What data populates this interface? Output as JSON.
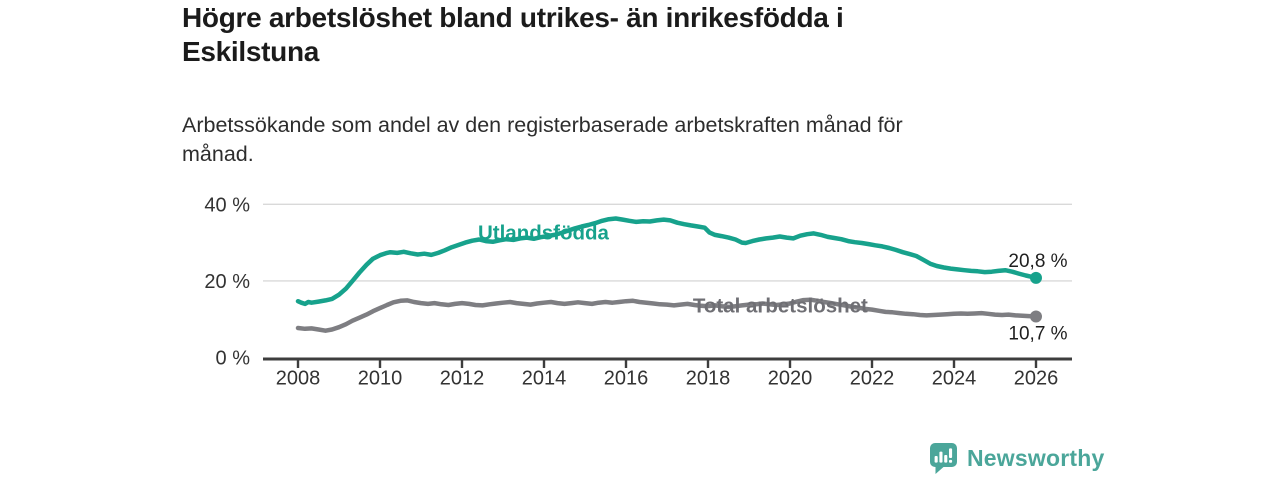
{
  "header": {
    "title_lines": [
      "Högre arbetslöshet bland utrikes- än inrikesfödda i",
      "Eskilstuna"
    ],
    "subtitle_lines": [
      "Arbetssökande som andel av den registerbaserade arbetskraften månad för",
      "månad."
    ]
  },
  "branding": {
    "logo_text": "Newsworthy",
    "logo_icon": "bar-chart-speech-bubble",
    "brand_color": "#4ba69a"
  },
  "colors": {
    "foreign_born_line": "#17a28c",
    "total_line": "#7e7e82",
    "total_label": "#6f6f74",
    "axis": "#3d3d3d",
    "gridline": "#d9d9d9",
    "axis_text": "#333333",
    "end_label_text": "#1f1f1f",
    "title_text": "#1b1b1b"
  },
  "chart_data": {
    "type": "line",
    "title": "Högre arbetslöshet bland utrikes- än inrikesfödda i Eskilstuna",
    "subtitle": "Arbetssökande som andel av den registerbaserade arbetskraften månad för månad.",
    "xlabel": "",
    "ylabel": "",
    "grid": "horizontal",
    "legend_position": "inline-labels",
    "xlim": [
      2007.15,
      2026.9
    ],
    "ylim": [
      0,
      42
    ],
    "x_ticks": [
      2008,
      2010,
      2012,
      2014,
      2016,
      2018,
      2020,
      2022,
      2024,
      2026
    ],
    "y_ticks": [
      {
        "value": 0,
        "label": "0 %"
      },
      {
        "value": 20,
        "label": "20 %"
      },
      {
        "value": 40,
        "label": "40 %"
      }
    ],
    "series": [
      {
        "name": "Utlandsfödda",
        "color": "#17a28c",
        "label_color": "#17a28c",
        "end_label": "20,8 %",
        "end_value": 20.8,
        "end_label_position": "above",
        "label_anchor": {
          "year": 2012.39,
          "pct": 30.85
        },
        "points": [
          [
            2008.0,
            14.7
          ],
          [
            2008.08,
            14.3
          ],
          [
            2008.17,
            14.0
          ],
          [
            2008.25,
            14.5
          ],
          [
            2008.33,
            14.3
          ],
          [
            2008.5,
            14.6
          ],
          [
            2008.67,
            14.9
          ],
          [
            2008.83,
            15.3
          ],
          [
            2009.0,
            16.4
          ],
          [
            2009.17,
            18.0
          ],
          [
            2009.33,
            20.0
          ],
          [
            2009.5,
            22.2
          ],
          [
            2009.67,
            24.2
          ],
          [
            2009.83,
            25.8
          ],
          [
            2010.0,
            26.7
          ],
          [
            2010.17,
            27.3
          ],
          [
            2010.25,
            27.5
          ],
          [
            2010.42,
            27.3
          ],
          [
            2010.58,
            27.6
          ],
          [
            2010.75,
            27.2
          ],
          [
            2010.92,
            26.9
          ],
          [
            2011.08,
            27.1
          ],
          [
            2011.25,
            26.8
          ],
          [
            2011.42,
            27.3
          ],
          [
            2011.58,
            28.0
          ],
          [
            2011.75,
            28.8
          ],
          [
            2011.92,
            29.4
          ],
          [
            2012.08,
            30.0
          ],
          [
            2012.25,
            30.5
          ],
          [
            2012.42,
            30.8
          ],
          [
            2012.58,
            30.4
          ],
          [
            2012.75,
            30.2
          ],
          [
            2012.92,
            30.6
          ],
          [
            2013.08,
            30.9
          ],
          [
            2013.25,
            30.7
          ],
          [
            2013.42,
            31.1
          ],
          [
            2013.58,
            31.3
          ],
          [
            2013.75,
            31.0
          ],
          [
            2013.92,
            31.4
          ],
          [
            2014.08,
            31.7
          ],
          [
            2014.25,
            32.0
          ],
          [
            2014.42,
            32.5
          ],
          [
            2014.58,
            33.1
          ],
          [
            2014.75,
            33.7
          ],
          [
            2014.92,
            34.2
          ],
          [
            2015.08,
            34.6
          ],
          [
            2015.25,
            35.1
          ],
          [
            2015.42,
            35.7
          ],
          [
            2015.58,
            36.1
          ],
          [
            2015.75,
            36.3
          ],
          [
            2015.92,
            36.0
          ],
          [
            2016.08,
            35.7
          ],
          [
            2016.25,
            35.4
          ],
          [
            2016.42,
            35.6
          ],
          [
            2016.58,
            35.5
          ],
          [
            2016.75,
            35.8
          ],
          [
            2016.92,
            36.0
          ],
          [
            2017.08,
            35.8
          ],
          [
            2017.25,
            35.2
          ],
          [
            2017.42,
            34.8
          ],
          [
            2017.58,
            34.5
          ],
          [
            2017.75,
            34.2
          ],
          [
            2017.92,
            33.9
          ],
          [
            2018.04,
            32.6
          ],
          [
            2018.17,
            32.0
          ],
          [
            2018.33,
            31.7
          ],
          [
            2018.5,
            31.3
          ],
          [
            2018.67,
            30.8
          ],
          [
            2018.83,
            30.0
          ],
          [
            2018.92,
            29.9
          ],
          [
            2019.08,
            30.4
          ],
          [
            2019.25,
            30.8
          ],
          [
            2019.42,
            31.1
          ],
          [
            2019.58,
            31.3
          ],
          [
            2019.75,
            31.6
          ],
          [
            2019.92,
            31.3
          ],
          [
            2020.08,
            31.1
          ],
          [
            2020.25,
            31.8
          ],
          [
            2020.42,
            32.2
          ],
          [
            2020.58,
            32.4
          ],
          [
            2020.75,
            32.0
          ],
          [
            2020.92,
            31.5
          ],
          [
            2021.08,
            31.2
          ],
          [
            2021.25,
            30.9
          ],
          [
            2021.42,
            30.4
          ],
          [
            2021.58,
            30.1
          ],
          [
            2021.75,
            29.9
          ],
          [
            2021.92,
            29.6
          ],
          [
            2022.08,
            29.3
          ],
          [
            2022.25,
            29.0
          ],
          [
            2022.42,
            28.6
          ],
          [
            2022.58,
            28.1
          ],
          [
            2022.75,
            27.5
          ],
          [
            2022.92,
            27.0
          ],
          [
            2023.08,
            26.5
          ],
          [
            2023.25,
            25.5
          ],
          [
            2023.42,
            24.5
          ],
          [
            2023.58,
            23.9
          ],
          [
            2023.75,
            23.5
          ],
          [
            2023.92,
            23.2
          ],
          [
            2024.08,
            23.0
          ],
          [
            2024.25,
            22.8
          ],
          [
            2024.42,
            22.6
          ],
          [
            2024.58,
            22.5
          ],
          [
            2024.75,
            22.3
          ],
          [
            2024.92,
            22.4
          ],
          [
            2025.08,
            22.6
          ],
          [
            2025.25,
            22.8
          ],
          [
            2025.42,
            22.4
          ],
          [
            2025.58,
            21.9
          ],
          [
            2025.75,
            21.4
          ],
          [
            2025.92,
            21.0
          ],
          [
            2026.0,
            20.8
          ]
        ]
      },
      {
        "name": "Total arbetslöshet",
        "color": "#7e7e82",
        "label_color": "#6f6f74",
        "end_label": "10,7 %",
        "end_value": 10.7,
        "end_label_position": "below",
        "label_anchor": {
          "year": 2017.63,
          "pct": 11.76
        },
        "points": [
          [
            2008.0,
            7.7
          ],
          [
            2008.17,
            7.5
          ],
          [
            2008.33,
            7.6
          ],
          [
            2008.5,
            7.3
          ],
          [
            2008.67,
            7.0
          ],
          [
            2008.83,
            7.3
          ],
          [
            2009.0,
            7.9
          ],
          [
            2009.17,
            8.7
          ],
          [
            2009.33,
            9.6
          ],
          [
            2009.5,
            10.4
          ],
          [
            2009.67,
            11.2
          ],
          [
            2009.83,
            12.1
          ],
          [
            2010.0,
            12.9
          ],
          [
            2010.17,
            13.7
          ],
          [
            2010.33,
            14.4
          ],
          [
            2010.5,
            14.8
          ],
          [
            2010.67,
            14.9
          ],
          [
            2010.83,
            14.5
          ],
          [
            2011.0,
            14.2
          ],
          [
            2011.17,
            14.0
          ],
          [
            2011.33,
            14.2
          ],
          [
            2011.5,
            13.9
          ],
          [
            2011.67,
            13.7
          ],
          [
            2011.83,
            14.0
          ],
          [
            2012.0,
            14.2
          ],
          [
            2012.17,
            14.0
          ],
          [
            2012.33,
            13.7
          ],
          [
            2012.5,
            13.6
          ],
          [
            2012.67,
            13.9
          ],
          [
            2012.83,
            14.1
          ],
          [
            2013.0,
            14.3
          ],
          [
            2013.17,
            14.5
          ],
          [
            2013.33,
            14.2
          ],
          [
            2013.5,
            14.0
          ],
          [
            2013.67,
            13.8
          ],
          [
            2013.83,
            14.1
          ],
          [
            2014.0,
            14.3
          ],
          [
            2014.17,
            14.5
          ],
          [
            2014.33,
            14.2
          ],
          [
            2014.5,
            14.0
          ],
          [
            2014.67,
            14.2
          ],
          [
            2014.83,
            14.4
          ],
          [
            2015.0,
            14.2
          ],
          [
            2015.17,
            14.0
          ],
          [
            2015.33,
            14.3
          ],
          [
            2015.5,
            14.5
          ],
          [
            2015.67,
            14.3
          ],
          [
            2015.83,
            14.5
          ],
          [
            2016.0,
            14.7
          ],
          [
            2016.17,
            14.8
          ],
          [
            2016.33,
            14.5
          ],
          [
            2016.5,
            14.3
          ],
          [
            2016.67,
            14.1
          ],
          [
            2016.83,
            13.9
          ],
          [
            2017.0,
            13.8
          ],
          [
            2017.17,
            13.6
          ],
          [
            2017.33,
            13.8
          ],
          [
            2017.5,
            14.0
          ],
          [
            2017.67,
            13.7
          ],
          [
            2017.83,
            13.5
          ],
          [
            2018.0,
            13.4
          ],
          [
            2018.17,
            13.6
          ],
          [
            2018.33,
            13.4
          ],
          [
            2018.5,
            13.2
          ],
          [
            2018.67,
            13.4
          ],
          [
            2018.83,
            13.6
          ],
          [
            2019.0,
            13.8
          ],
          [
            2019.17,
            13.9
          ],
          [
            2019.33,
            14.1
          ],
          [
            2019.5,
            13.9
          ],
          [
            2019.67,
            13.7
          ],
          [
            2019.83,
            13.9
          ],
          [
            2020.0,
            14.1
          ],
          [
            2020.17,
            14.6
          ],
          [
            2020.33,
            15.0
          ],
          [
            2020.5,
            15.1
          ],
          [
            2020.67,
            14.8
          ],
          [
            2020.83,
            14.5
          ],
          [
            2021.0,
            14.2
          ],
          [
            2021.17,
            13.9
          ],
          [
            2021.33,
            13.6
          ],
          [
            2021.5,
            13.3
          ],
          [
            2021.67,
            13.0
          ],
          [
            2021.83,
            12.7
          ],
          [
            2022.0,
            12.5
          ],
          [
            2022.17,
            12.2
          ],
          [
            2022.33,
            11.9
          ],
          [
            2022.5,
            11.8
          ],
          [
            2022.67,
            11.6
          ],
          [
            2022.83,
            11.4
          ],
          [
            2023.0,
            11.3
          ],
          [
            2023.17,
            11.1
          ],
          [
            2023.33,
            11.0
          ],
          [
            2023.5,
            11.1
          ],
          [
            2023.67,
            11.2
          ],
          [
            2023.83,
            11.3
          ],
          [
            2024.0,
            11.4
          ],
          [
            2024.17,
            11.5
          ],
          [
            2024.33,
            11.4
          ],
          [
            2024.5,
            11.5
          ],
          [
            2024.67,
            11.6
          ],
          [
            2024.83,
            11.4
          ],
          [
            2025.0,
            11.2
          ],
          [
            2025.17,
            11.1
          ],
          [
            2025.33,
            11.2
          ],
          [
            2025.5,
            11.0
          ],
          [
            2025.67,
            10.9
          ],
          [
            2025.83,
            10.8
          ],
          [
            2026.0,
            10.7
          ]
        ]
      }
    ]
  }
}
